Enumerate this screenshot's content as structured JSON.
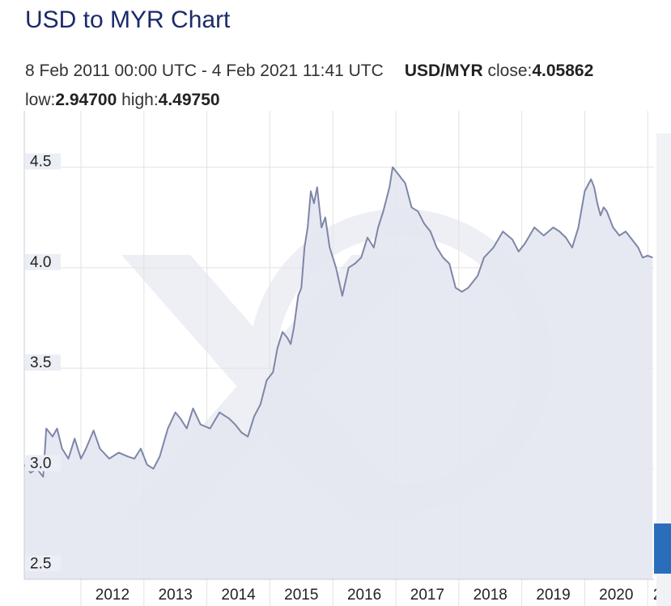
{
  "title": "USD to MYR Chart",
  "summary": {
    "range": "8 Feb 2011 00:00 UTC - 4 Feb 2021 11:41 UTC",
    "pair": "USD/MYR",
    "close_label": "close:",
    "close": "4.05862",
    "low_label": "low:",
    "low": "2.94700",
    "high_label": "high:",
    "high": "4.49750"
  },
  "colors": {
    "line": "#7e86a8",
    "fill": "#e4e7f1",
    "grid": "#e2e2e2",
    "axis_text": "#222222",
    "tick_bg": "#eceef5",
    "nav_blue": "#2a6ebb"
  },
  "chart_data": {
    "type": "area",
    "x_tick_labels": [
      "2012",
      "2013",
      "2014",
      "2015",
      "2016",
      "2017",
      "2018",
      "2019",
      "2020",
      "2"
    ],
    "y_tick_labels": [
      "4.5",
      "4.0",
      "3.5",
      "3.0",
      "2.5"
    ],
    "y_ticks": [
      4.5,
      4.0,
      3.5,
      3.0,
      2.5
    ],
    "xlim": [
      2011.1,
      2021.1
    ],
    "ylim": [
      2.45,
      4.78
    ],
    "grid": true,
    "series": [
      {
        "x": [
          2011.1,
          2011.2,
          2011.3,
          2011.4,
          2011.45,
          2011.5,
          2011.55,
          2011.62,
          2011.7,
          2011.8,
          2011.9,
          2012.0,
          2012.08,
          2012.2,
          2012.3,
          2012.45,
          2012.6,
          2012.75,
          2012.85,
          2012.95,
          2013.05,
          2013.15,
          2013.25,
          2013.38,
          2013.5,
          2013.58,
          2013.68,
          2013.78,
          2013.9,
          2014.05,
          2014.2,
          2014.35,
          2014.45,
          2014.55,
          2014.65,
          2014.75,
          2014.85,
          2014.95,
          2015.05,
          2015.12,
          2015.2,
          2015.28,
          2015.33,
          2015.38,
          2015.45,
          2015.5,
          2015.55,
          2015.6,
          2015.65,
          2015.7,
          2015.75,
          2015.82,
          2015.88,
          2015.95,
          2016.05,
          2016.15,
          2016.25,
          2016.35,
          2016.45,
          2016.55,
          2016.65,
          2016.72,
          2016.8,
          2016.9,
          2016.95,
          2017.05,
          2017.15,
          2017.25,
          2017.35,
          2017.45,
          2017.55,
          2017.65,
          2017.75,
          2017.85,
          2017.95,
          2018.05,
          2018.15,
          2018.3,
          2018.4,
          2018.55,
          2018.7,
          2018.85,
          2018.95,
          2019.05,
          2019.2,
          2019.35,
          2019.5,
          2019.6,
          2019.7,
          2019.8,
          2019.9,
          2020.0,
          2020.1,
          2020.15,
          2020.2,
          2020.25,
          2020.3,
          2020.35,
          2020.45,
          2020.55,
          2020.65,
          2020.75,
          2020.85,
          2020.92,
          2021.0,
          2021.08
        ],
        "y": [
          3.02,
          2.98,
          3.0,
          2.96,
          3.2,
          3.18,
          3.16,
          3.2,
          3.1,
          3.05,
          3.15,
          3.05,
          3.1,
          3.19,
          3.1,
          3.05,
          3.08,
          3.06,
          3.05,
          3.1,
          3.02,
          3.0,
          3.06,
          3.2,
          3.28,
          3.25,
          3.2,
          3.3,
          3.22,
          3.2,
          3.28,
          3.25,
          3.22,
          3.18,
          3.16,
          3.26,
          3.32,
          3.44,
          3.48,
          3.6,
          3.68,
          3.65,
          3.62,
          3.7,
          3.86,
          3.9,
          4.1,
          4.2,
          4.38,
          4.32,
          4.4,
          4.2,
          4.25,
          4.1,
          4.0,
          3.86,
          4.0,
          4.02,
          4.05,
          4.15,
          4.1,
          4.2,
          4.28,
          4.4,
          4.5,
          4.46,
          4.42,
          4.3,
          4.28,
          4.22,
          4.18,
          4.1,
          4.05,
          4.02,
          3.9,
          3.88,
          3.9,
          3.96,
          4.05,
          4.1,
          4.18,
          4.14,
          4.08,
          4.12,
          4.2,
          4.16,
          4.2,
          4.18,
          4.15,
          4.1,
          4.2,
          4.38,
          4.44,
          4.4,
          4.32,
          4.26,
          4.3,
          4.28,
          4.2,
          4.16,
          4.18,
          4.14,
          4.1,
          4.05,
          4.06,
          4.05
        ]
      }
    ]
  }
}
